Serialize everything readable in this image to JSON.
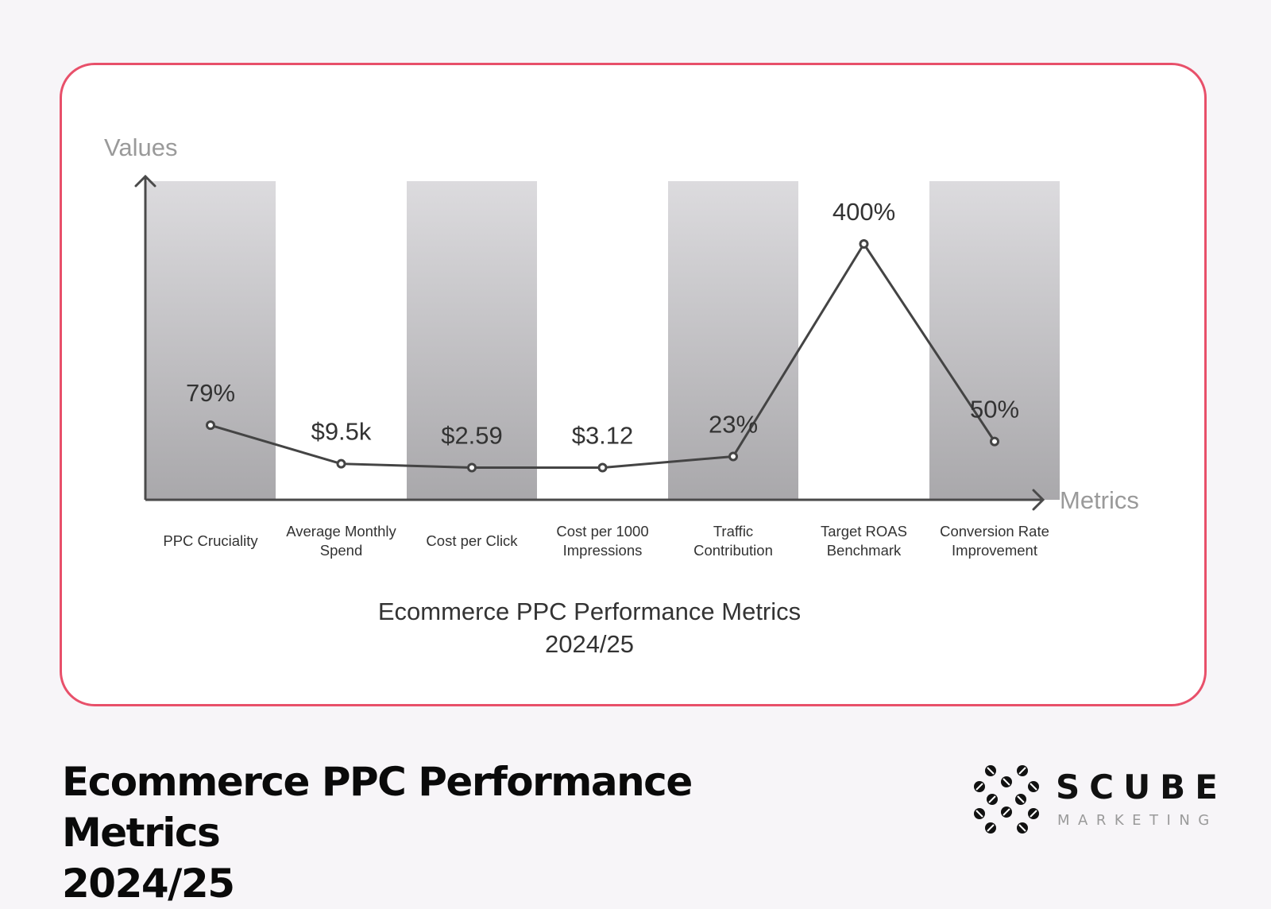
{
  "chart_data": {
    "type": "bar-line",
    "ylabel": "Values",
    "xlabel": "Metrics",
    "title": "Ecommerce PPC Performance Metrics 2024/25",
    "title_lines": [
      "Ecommerce PPC Performance Metrics",
      "2024/25"
    ],
    "categories": [
      [
        "PPC Cruciality"
      ],
      [
        "Average Monthly",
        "Spend"
      ],
      [
        "Cost per Click"
      ],
      [
        "Cost per 1000",
        "Impressions"
      ],
      [
        "Traffic",
        "Contribution"
      ],
      [
        "Target ROAS",
        "Benchmark"
      ],
      [
        "Conversion Rate",
        "Improvement"
      ]
    ],
    "data_labels": [
      "79%",
      "$9.5k",
      "$2.59",
      "$3.12",
      "23%",
      "400%",
      "50%"
    ],
    "line_levels": [
      0.234,
      0.113,
      0.101,
      0.101,
      0.136,
      0.803,
      0.183
    ],
    "shaded_bands": [
      true,
      false,
      true,
      false,
      true,
      false,
      true
    ],
    "grid": false,
    "colors": {
      "line": "#444444",
      "axis": "#4a4a4a",
      "band_top": "#dcdbde",
      "band_bottom": "#a9a8ab",
      "axis_label": "#9a9a9a",
      "text": "#333333",
      "border": "#e8506a"
    }
  },
  "page": {
    "title_lines": [
      "Ecommerce PPC Performance Metrics",
      "2024/25"
    ]
  },
  "logo": {
    "name": "SCUBE",
    "sub": "MARKETING",
    "icon": "dots-cluster-icon"
  }
}
